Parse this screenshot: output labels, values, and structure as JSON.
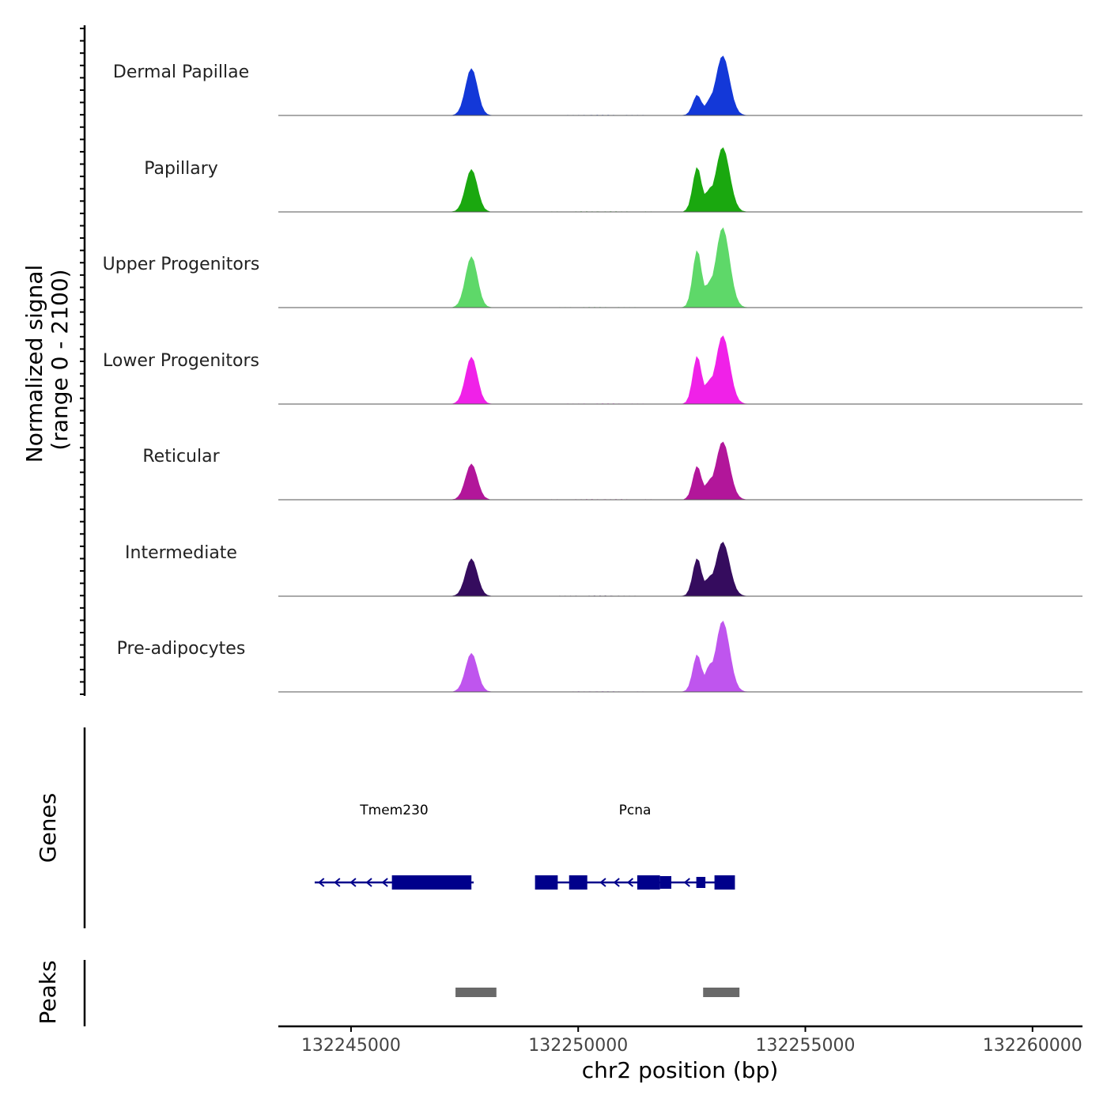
{
  "chart_data": {
    "type": "area",
    "title": "",
    "ylabel": "Normalized signal",
    "ylabel_range": "(range 0 - 2100)",
    "xlabel": "chr2 position (bp)",
    "xlim": [
      132243400,
      132261100
    ],
    "ylim": [
      0,
      2100
    ],
    "x_ticks": [
      132245000,
      132250000,
      132255000,
      132260000
    ],
    "x_tick_labels": [
      "132245000",
      "132250000",
      "132255000",
      "132260000"
    ],
    "peak_positions": [
      132247650,
      132252620,
      132252870,
      132253180
    ],
    "series": [
      {
        "name": "Dermal Papillae",
        "color": "#1338d8",
        "values": [
          1460,
          630,
          230,
          1850
        ]
      },
      {
        "name": "Papillary",
        "color": "#1aa80f",
        "values": [
          1320,
          1390,
          390,
          2000
        ]
      },
      {
        "name": "Upper Progenitors",
        "color": "#5ed869",
        "values": [
          1580,
          1790,
          390,
          2480
        ]
      },
      {
        "name": "Lower Progenitors",
        "color": "#f021e8",
        "values": [
          1460,
          1490,
          400,
          2120
        ]
      },
      {
        "name": "Reticular",
        "color": "#b2169a",
        "values": [
          1110,
          1040,
          320,
          1800
        ]
      },
      {
        "name": "Intermediate",
        "color": "#350c5e",
        "values": [
          1160,
          1180,
          330,
          1680
        ]
      },
      {
        "name": "Pre-adipocytes",
        "color": "#bf55ee",
        "values": [
          1200,
          1160,
          500,
          2200
        ]
      }
    ],
    "genes_track_label": "Genes",
    "genes": [
      {
        "name": "Tmem230",
        "color": "#00008b",
        "strand": "-",
        "start": 132244200,
        "end": 132247700
      },
      {
        "name": "Pcna",
        "color": "#00008b",
        "strand": "-",
        "start": 132249100,
        "end": 132253400
      }
    ],
    "peaks_track_label": "Peaks",
    "peaks": [
      {
        "start": 132247300,
        "end": 132248200,
        "color": "#696969"
      },
      {
        "start": 132252750,
        "end": 132253550,
        "color": "#696969"
      }
    ]
  }
}
